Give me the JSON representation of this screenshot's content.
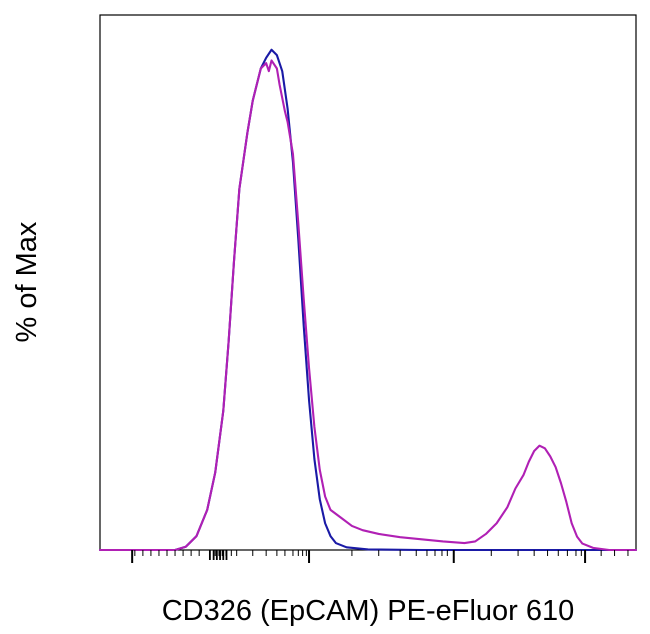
{
  "chart_data": {
    "type": "line",
    "title": "",
    "xlabel": "CD326 (EpCAM) PE-eFluor 610",
    "ylabel": "% of Max",
    "x_scale": "log",
    "xlim": [
      0,
      1
    ],
    "ylim": [
      0,
      100
    ],
    "grid": false,
    "legend": "none",
    "x_tick_labels": [],
    "y_tick_labels": [],
    "series": [
      {
        "color": "#1a1aa6",
        "points": [
          [
            0.0,
            0.0
          ],
          [
            0.14,
            0.0
          ],
          [
            0.16,
            0.6
          ],
          [
            0.18,
            2.6
          ],
          [
            0.2,
            7.5
          ],
          [
            0.215,
            14.5
          ],
          [
            0.23,
            26.0
          ],
          [
            0.24,
            39.0
          ],
          [
            0.25,
            54.0
          ],
          [
            0.26,
            67.5
          ],
          [
            0.275,
            78.0
          ],
          [
            0.285,
            84.0
          ],
          [
            0.29,
            86.0
          ],
          [
            0.3,
            90.0
          ],
          [
            0.31,
            92.0
          ],
          [
            0.32,
            93.5
          ],
          [
            0.33,
            92.5
          ],
          [
            0.34,
            89.5
          ],
          [
            0.35,
            82.5
          ],
          [
            0.36,
            72.5
          ],
          [
            0.37,
            58.0
          ],
          [
            0.38,
            42.0
          ],
          [
            0.39,
            28.0
          ],
          [
            0.4,
            17.0
          ],
          [
            0.41,
            9.5
          ],
          [
            0.42,
            5.0
          ],
          [
            0.43,
            2.6
          ],
          [
            0.44,
            1.3
          ],
          [
            0.46,
            0.5
          ],
          [
            0.5,
            0.1
          ],
          [
            0.6,
            0.0
          ],
          [
            1.0,
            0.0
          ]
        ]
      },
      {
        "color": "#b020b4",
        "points": [
          [
            0.0,
            0.0
          ],
          [
            0.14,
            0.0
          ],
          [
            0.16,
            0.6
          ],
          [
            0.18,
            2.6
          ],
          [
            0.2,
            7.5
          ],
          [
            0.215,
            14.5
          ],
          [
            0.23,
            26.0
          ],
          [
            0.24,
            39.0
          ],
          [
            0.25,
            54.0
          ],
          [
            0.26,
            67.5
          ],
          [
            0.275,
            78.0
          ],
          [
            0.285,
            84.0
          ],
          [
            0.29,
            86.0
          ],
          [
            0.3,
            90.0
          ],
          [
            0.31,
            91.0
          ],
          [
            0.315,
            89.5
          ],
          [
            0.32,
            91.5
          ],
          [
            0.33,
            90.0
          ],
          [
            0.335,
            87.0
          ],
          [
            0.345,
            82.0
          ],
          [
            0.35,
            80.0
          ],
          [
            0.36,
            74.0
          ],
          [
            0.37,
            61.0
          ],
          [
            0.38,
            47.0
          ],
          [
            0.39,
            34.0
          ],
          [
            0.4,
            23.0
          ],
          [
            0.41,
            15.0
          ],
          [
            0.42,
            10.0
          ],
          [
            0.43,
            7.5
          ],
          [
            0.45,
            6.0
          ],
          [
            0.47,
            4.5
          ],
          [
            0.49,
            3.7
          ],
          [
            0.52,
            3.0
          ],
          [
            0.56,
            2.4
          ],
          [
            0.6,
            2.0
          ],
          [
            0.64,
            1.6
          ],
          [
            0.68,
            1.3
          ],
          [
            0.7,
            1.6
          ],
          [
            0.72,
            3.0
          ],
          [
            0.74,
            5.0
          ],
          [
            0.76,
            8.0
          ],
          [
            0.775,
            11.5
          ],
          [
            0.79,
            14.0
          ],
          [
            0.8,
            16.5
          ],
          [
            0.81,
            18.5
          ],
          [
            0.82,
            19.5
          ],
          [
            0.83,
            19.0
          ],
          [
            0.84,
            17.5
          ],
          [
            0.85,
            15.5
          ],
          [
            0.86,
            12.5
          ],
          [
            0.87,
            9.0
          ],
          [
            0.88,
            5.0
          ],
          [
            0.89,
            2.5
          ],
          [
            0.9,
            1.2
          ],
          [
            0.92,
            0.4
          ],
          [
            0.95,
            0.0
          ],
          [
            1.0,
            0.0
          ]
        ]
      }
    ],
    "colors": {
      "frame": "#000000",
      "background": "#ffffff"
    }
  }
}
